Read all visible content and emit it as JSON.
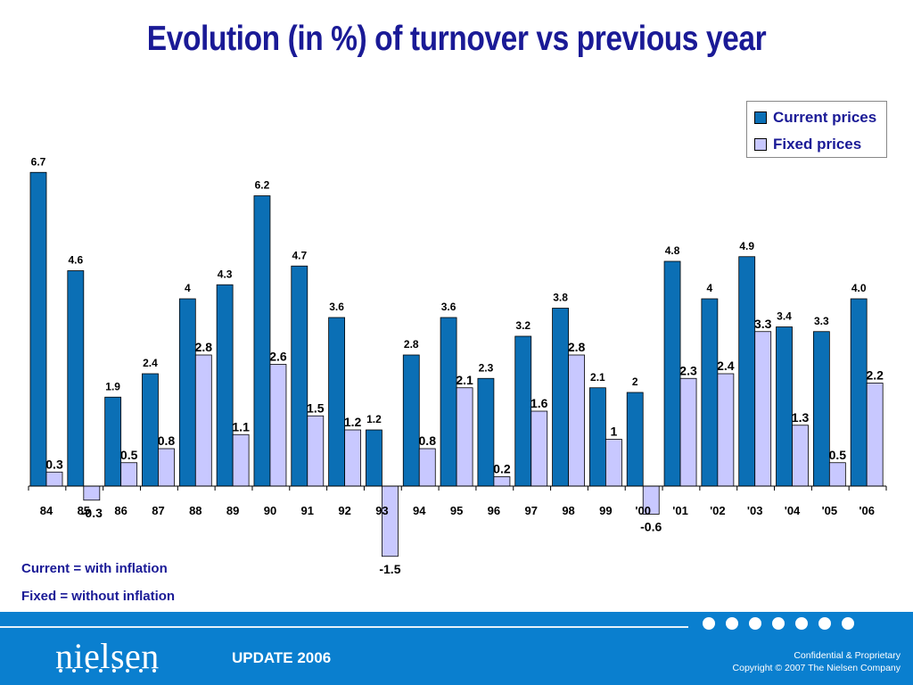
{
  "header": {
    "title": "Evolution (in %) of turnover vs previous year"
  },
  "colors": {
    "current": "#0b6fb5",
    "fixed": "#c8c8ff",
    "title": "#1a1a96",
    "footer": "#0a7fcf"
  },
  "chart_data": {
    "type": "bar",
    "title": "Evolution (in %) of turnover vs previous year",
    "categories": [
      "84",
      "85",
      "86",
      "87",
      "88",
      "89",
      "90",
      "91",
      "92",
      "93",
      "94",
      "95",
      "96",
      "97",
      "98",
      "99",
      "'00",
      "'01",
      "'02",
      "'03",
      "'04",
      "'05",
      "'06"
    ],
    "series": [
      {
        "name": "Current prices",
        "values": [
          6.7,
          4.6,
          1.9,
          2.4,
          4,
          4.3,
          6.2,
          4.7,
          3.6,
          1.2,
          2.8,
          3.6,
          2.3,
          3.2,
          3.8,
          2.1,
          2,
          4.8,
          4,
          4.9,
          3.4,
          3.3,
          4.0
        ],
        "labels": [
          "6.7",
          "4.6",
          "1.9",
          "2.4",
          "4",
          "4.3",
          "6.2",
          "4.7",
          "3.6",
          "1.2",
          "2.8",
          "3.6",
          "2.3",
          "3.2",
          "3.8",
          "2.1",
          "2",
          "4.8",
          "4",
          "4.9",
          "3.4",
          "3.3",
          "4.0"
        ]
      },
      {
        "name": "Fixed prices",
        "values": [
          0.3,
          -0.3,
          0.5,
          0.8,
          2.8,
          1.1,
          2.6,
          1.5,
          1.2,
          -1.5,
          0.8,
          2.1,
          0.2,
          1.6,
          2.8,
          1,
          -0.6,
          2.3,
          2.4,
          3.3,
          1.3,
          0.5,
          2.2
        ],
        "labels": [
          "0.3",
          "-0.3",
          "0.5",
          "0.8",
          "2.8",
          "1.1",
          "2.6",
          "1.5",
          "1.2",
          "-1.5",
          "0.8",
          "2.1",
          "0.2",
          "1.6",
          "2.8",
          "1",
          "-0.6",
          "2.3",
          "2.4",
          "3.3",
          "1.3",
          "0.5",
          "2.2"
        ]
      }
    ],
    "grid": false,
    "legend": "top-right",
    "ylim": [
      -1.5,
      6.7
    ]
  },
  "legend": {
    "current": "Current prices",
    "fixed": "Fixed prices"
  },
  "notes": {
    "current": "Current = with inflation",
    "fixed": "Fixed = without inflation"
  },
  "footer": {
    "logo": "nielsen",
    "update": "UPDATE 2006",
    "confidential": "Confidential & Proprietary",
    "copyright": "Copyright © 2007 The Nielsen Company"
  }
}
